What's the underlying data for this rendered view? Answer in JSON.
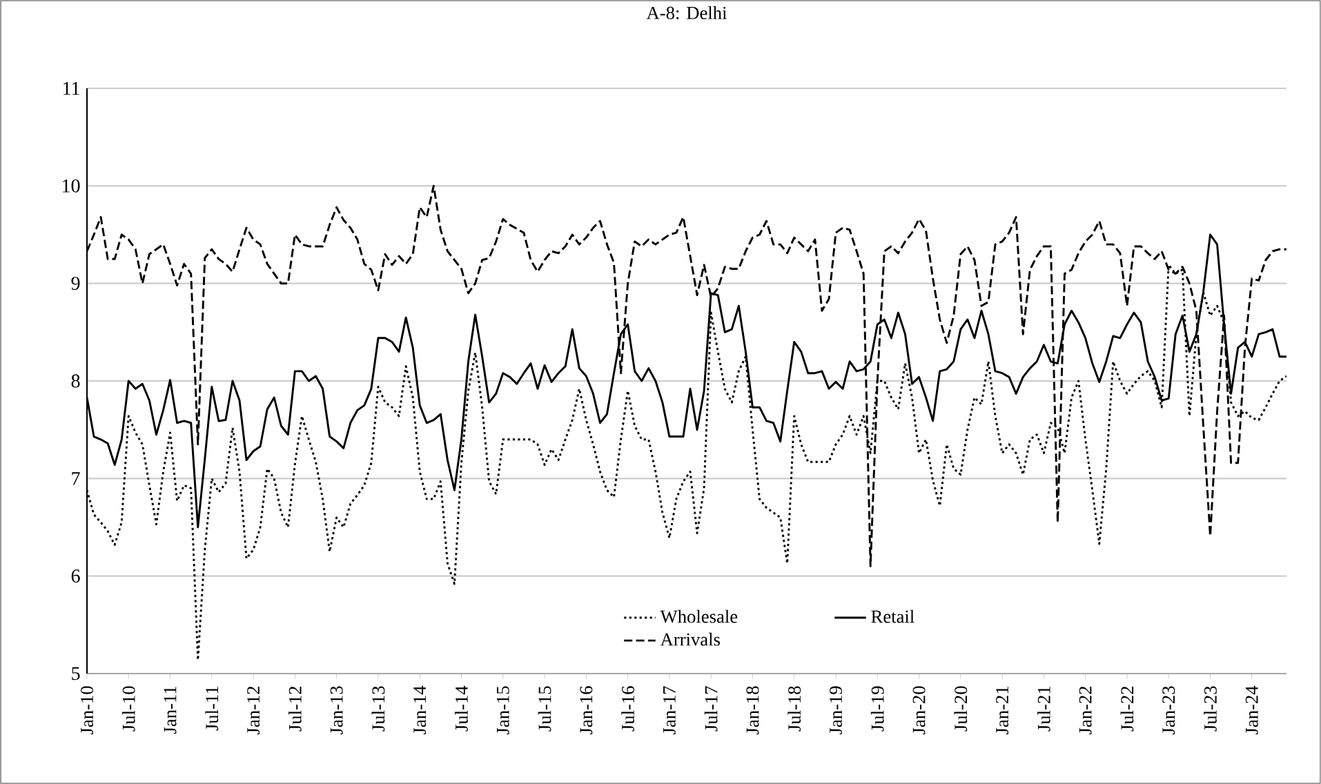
{
  "chart_data": {
    "type": "line",
    "title": "A-8: Delhi",
    "categories": [
      "Jan-10",
      null,
      null,
      null,
      null,
      null,
      "Jul-10",
      null,
      null,
      null,
      null,
      null,
      "Jan-11",
      null,
      null,
      null,
      null,
      null,
      "Jul-11",
      null,
      null,
      null,
      null,
      null,
      "Jan-12",
      null,
      null,
      null,
      null,
      null,
      "Jul-12",
      null,
      null,
      null,
      null,
      null,
      "Jan-13",
      null,
      null,
      null,
      null,
      null,
      "Jul-13",
      null,
      null,
      null,
      null,
      null,
      "Jan-14",
      null,
      null,
      null,
      null,
      null,
      "Jul-14",
      null,
      null,
      null,
      null,
      null,
      "Jan-15",
      null,
      null,
      null,
      null,
      null,
      "Jul-15",
      null,
      null,
      null,
      null,
      null,
      "Jan-16",
      null,
      null,
      null,
      null,
      null,
      "Jul-16",
      null,
      null,
      null,
      null,
      null,
      "Jan-17",
      null,
      null,
      null,
      null,
      null,
      "Jul-17",
      null,
      null,
      null,
      null,
      null,
      "Jan-18",
      null,
      null,
      null,
      null,
      null,
      "Jul-18",
      null,
      null,
      null,
      null,
      null,
      "Jan-19",
      null,
      null,
      null,
      null,
      null,
      "Jul-19",
      null,
      null,
      null,
      null,
      null,
      "Jan-20",
      null,
      null,
      null,
      null,
      null,
      "Jul-20",
      null,
      null,
      null,
      null,
      null,
      "Jan-21",
      null,
      null,
      null,
      null,
      null,
      "Jul-21",
      null,
      null,
      null,
      null,
      null,
      "Jan-22",
      null,
      null,
      null,
      null,
      null,
      "Jul-22",
      null,
      null,
      null,
      null,
      null,
      "Jan-23",
      null,
      null,
      null,
      null,
      null,
      "Jul-23",
      null,
      null,
      null,
      null,
      null,
      "Jan-24",
      null,
      null,
      null,
      null,
      null
    ],
    "series": [
      {
        "name": "Wholesale",
        "color": "#000000",
        "line_style": "dotted",
        "values": [
          6.88,
          6.63,
          6.55,
          6.46,
          6.32,
          6.55,
          7.64,
          7.47,
          7.35,
          6.93,
          6.53,
          7.07,
          7.47,
          6.77,
          6.93,
          6.9,
          5.14,
          6.27,
          7.0,
          6.86,
          6.95,
          7.52,
          7.07,
          6.18,
          6.27,
          6.5,
          7.1,
          7.0,
          6.65,
          6.5,
          7.15,
          7.64,
          7.4,
          7.17,
          6.79,
          6.25,
          6.6,
          6.5,
          6.74,
          6.83,
          6.93,
          7.16,
          7.94,
          7.78,
          7.73,
          7.64,
          8.15,
          7.83,
          7.07,
          6.79,
          6.79,
          6.97,
          6.13,
          5.92,
          7.16,
          7.9,
          8.29,
          7.73,
          6.97,
          6.84,
          7.4,
          7.4,
          7.4,
          7.4,
          7.4,
          7.35,
          7.14,
          7.3,
          7.19,
          7.4,
          7.6,
          7.92,
          7.6,
          7.35,
          7.07,
          6.88,
          6.81,
          7.4,
          7.9,
          7.54,
          7.4,
          7.4,
          7.07,
          6.65,
          6.39,
          6.79,
          6.97,
          7.07,
          6.44,
          6.9,
          8.7,
          8.3,
          7.92,
          7.78,
          8.1,
          8.25,
          7.5,
          6.79,
          6.7,
          6.65,
          6.6,
          6.13,
          7.64,
          7.35,
          7.17,
          7.17,
          7.17,
          7.17,
          7.35,
          7.45,
          7.64,
          7.45,
          7.64,
          7.26,
          8.0,
          8.0,
          7.83,
          7.71,
          8.18,
          7.83,
          7.26,
          7.4,
          6.98,
          6.72,
          7.35,
          7.1,
          7.04,
          7.5,
          7.83,
          7.76,
          8.2,
          7.64,
          7.26,
          7.35,
          7.26,
          7.04,
          7.4,
          7.45,
          7.26,
          7.57,
          7.52,
          7.26,
          7.83,
          8.0,
          7.4,
          6.88,
          6.33,
          7.1,
          8.2,
          8.0,
          7.87,
          7.97,
          8.05,
          8.1,
          8.0,
          7.73,
          9.19,
          9.1,
          9.14,
          7.64,
          8.48,
          8.91,
          8.67,
          8.77,
          8.6,
          7.78,
          7.64,
          7.69,
          7.62,
          7.6,
          7.73,
          7.87,
          8.0,
          8.05
        ]
      },
      {
        "name": "Retail",
        "color": "#000000",
        "line_style": "solid",
        "values": [
          7.83,
          7.43,
          7.4,
          7.36,
          7.14,
          7.4,
          8.0,
          7.92,
          7.97,
          7.8,
          7.45,
          7.7,
          8.01,
          7.57,
          7.59,
          7.57,
          6.5,
          7.2,
          7.94,
          7.59,
          7.6,
          8.0,
          7.8,
          7.19,
          7.28,
          7.33,
          7.71,
          7.83,
          7.54,
          7.45,
          8.1,
          8.1,
          8.0,
          8.05,
          7.92,
          7.43,
          7.38,
          7.31,
          7.57,
          7.7,
          7.75,
          7.92,
          8.44,
          8.44,
          8.4,
          8.3,
          8.65,
          8.34,
          7.75,
          7.57,
          7.6,
          7.66,
          7.19,
          6.88,
          7.4,
          8.2,
          8.68,
          8.25,
          7.78,
          7.87,
          8.08,
          8.04,
          7.97,
          8.08,
          8.18,
          7.92,
          8.16,
          7.99,
          8.08,
          8.15,
          8.53,
          8.13,
          8.05,
          7.87,
          7.57,
          7.66,
          8.08,
          8.48,
          8.58,
          8.1,
          8.0,
          8.13,
          8.0,
          7.78,
          7.43,
          7.43,
          7.43,
          7.92,
          7.5,
          7.9,
          8.9,
          8.88,
          8.5,
          8.53,
          8.77,
          8.3,
          7.73,
          7.73,
          7.59,
          7.57,
          7.38,
          7.9,
          8.4,
          8.3,
          8.08,
          8.08,
          8.1,
          7.92,
          7.99,
          7.92,
          8.2,
          8.1,
          8.12,
          8.2,
          8.58,
          8.63,
          8.44,
          8.7,
          8.48,
          7.97,
          8.04,
          7.83,
          7.59,
          8.1,
          8.12,
          8.2,
          8.53,
          8.63,
          8.44,
          8.72,
          8.48,
          8.1,
          8.08,
          8.04,
          7.87,
          8.04,
          8.13,
          8.2,
          8.37,
          8.2,
          8.18,
          8.58,
          8.72,
          8.6,
          8.44,
          8.18,
          7.99,
          8.2,
          8.46,
          8.44,
          8.58,
          8.7,
          8.6,
          8.2,
          8.04,
          7.8,
          7.82,
          8.48,
          8.67,
          8.3,
          8.48,
          8.91,
          9.5,
          9.4,
          8.58,
          7.87,
          8.34,
          8.4,
          8.25,
          8.48,
          8.5,
          8.53,
          8.25,
          8.25
        ]
      },
      {
        "name": "Arrivals",
        "color": "#000000",
        "line_style": "dashed",
        "values": [
          9.33,
          9.5,
          9.68,
          9.25,
          9.25,
          9.5,
          9.45,
          9.35,
          9.0,
          9.3,
          9.35,
          9.4,
          9.2,
          8.98,
          9.2,
          9.1,
          7.35,
          9.26,
          9.35,
          9.25,
          9.2,
          9.12,
          9.35,
          9.57,
          9.45,
          9.4,
          9.2,
          9.1,
          9.0,
          9.0,
          9.5,
          9.4,
          9.38,
          9.38,
          9.38,
          9.6,
          9.78,
          9.65,
          9.57,
          9.45,
          9.2,
          9.14,
          8.93,
          9.3,
          9.19,
          9.28,
          9.2,
          9.3,
          9.78,
          9.68,
          10.0,
          9.55,
          9.33,
          9.24,
          9.15,
          8.9,
          9.0,
          9.24,
          9.26,
          9.43,
          9.66,
          9.6,
          9.56,
          9.52,
          9.24,
          9.12,
          9.24,
          9.33,
          9.31,
          9.38,
          9.5,
          9.4,
          9.47,
          9.57,
          9.64,
          9.4,
          9.21,
          8.08,
          9.0,
          9.43,
          9.38,
          9.45,
          9.4,
          9.45,
          9.5,
          9.52,
          9.68,
          9.28,
          8.88,
          9.19,
          8.86,
          8.95,
          9.17,
          9.15,
          9.15,
          9.33,
          9.47,
          9.5,
          9.64,
          9.4,
          9.4,
          9.31,
          9.47,
          9.4,
          9.33,
          9.45,
          8.72,
          8.84,
          9.52,
          9.57,
          9.55,
          9.33,
          9.1,
          6.1,
          8.0,
          9.33,
          9.38,
          9.31,
          9.43,
          9.52,
          9.66,
          9.54,
          9.05,
          8.63,
          8.39,
          8.67,
          9.3,
          9.38,
          9.24,
          8.77,
          8.81,
          9.4,
          9.43,
          9.52,
          9.68,
          8.48,
          9.14,
          9.28,
          9.38,
          9.38,
          6.55,
          9.1,
          9.14,
          9.31,
          9.43,
          9.5,
          9.64,
          9.4,
          9.4,
          9.31,
          8.77,
          9.38,
          9.38,
          9.31,
          9.25,
          9.33,
          9.14,
          9.1,
          9.17,
          9.0,
          8.72,
          7.54,
          6.41,
          7.69,
          8.67,
          7.16,
          7.16,
          8.34,
          9.05,
          9.03,
          9.24,
          9.33,
          9.35,
          9.35
        ]
      }
    ],
    "ylim": [
      5,
      11
    ],
    "yticks": [
      5,
      6,
      7,
      8,
      9,
      10,
      11
    ],
    "grid": "y",
    "legend": "bottom",
    "marker": "none"
  }
}
